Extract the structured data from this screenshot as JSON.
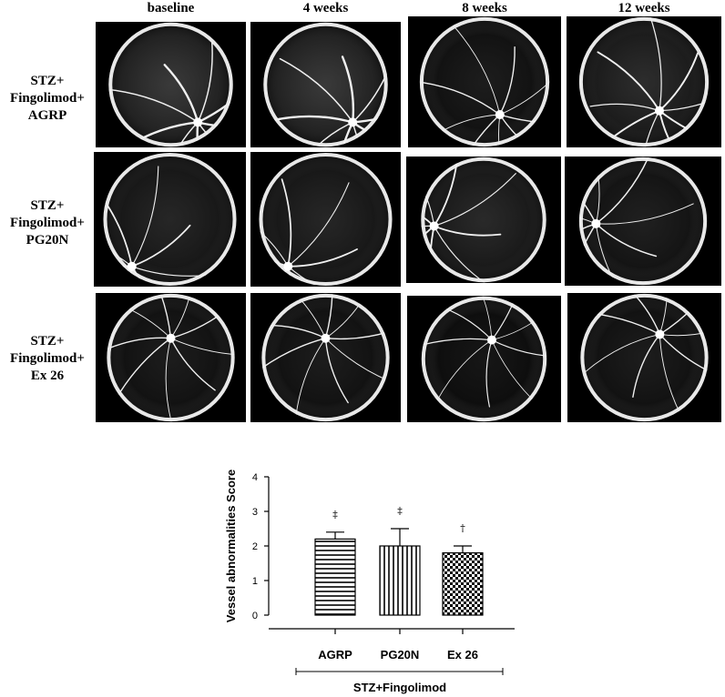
{
  "figure": {
    "columns": [
      "baseline",
      "4 weeks",
      "8 weeks",
      "12 weeks"
    ],
    "rows": [
      {
        "lines": [
          "STZ+",
          "Fingolimod+",
          "AGRP"
        ]
      },
      {
        "lines": [
          "STZ+",
          "Fingolimod+",
          "PG20N"
        ]
      },
      {
        "lines": [
          "STZ+",
          "Fingolimod+",
          "Ex 26"
        ]
      }
    ],
    "image_tone": "grayscale fluorescein angiography fundus images"
  },
  "chart_data": {
    "type": "bar",
    "categories": [
      "AGRP",
      "PG20N",
      "Ex 26"
    ],
    "values": [
      2.2,
      2.0,
      1.8
    ],
    "errors": [
      0.2,
      0.5,
      0.2
    ],
    "significance": [
      "‡",
      "‡",
      "†"
    ],
    "patterns": [
      "horizontal-lines",
      "vertical-lines",
      "checkerboard"
    ],
    "ylabel": "Vessel abnormalities Score",
    "yticks": [
      "0",
      "1",
      "2",
      "3",
      "4"
    ],
    "ylim": [
      0,
      4
    ],
    "group_label": "STZ+Fingolimod"
  }
}
